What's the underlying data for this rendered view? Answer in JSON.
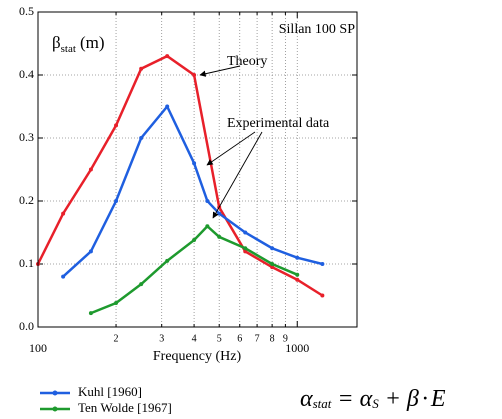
{
  "chart_data": {
    "type": "line",
    "annotations": {
      "ylabel_symbol": "β",
      "ylabel_sub": "stat",
      "ylabel_unit": "(m)",
      "label": "Sillan 100 SP",
      "theory": "Theory",
      "experimental": "Experimental data"
    },
    "xlabel": "Frequency (Hz)",
    "log_x": true,
    "grid": true,
    "xlim": [
      100,
      1700
    ],
    "ylim": [
      0,
      0.5
    ],
    "xticks": [
      100,
      {
        "value": 200,
        "label": "2"
      },
      {
        "value": 300,
        "label": "3"
      },
      {
        "value": 400,
        "label": "4"
      },
      {
        "value": 500,
        "label": "5"
      },
      {
        "value": 600,
        "label": "6"
      },
      {
        "value": 700,
        "label": "7"
      },
      {
        "value": 800,
        "label": "8"
      },
      {
        "value": 900,
        "label": "9"
      },
      1000
    ],
    "yticks": [
      {
        "value": 0,
        "label": "0.0"
      },
      0.1,
      0.2,
      0.3,
      0.4,
      0.5
    ],
    "series": [
      {
        "color": "#e8202a",
        "x": [
          100,
          125,
          160,
          200,
          250,
          315,
          400,
          500,
          630,
          800,
          1000,
          1250
        ],
        "values": [
          0.1,
          0.18,
          0.25,
          0.32,
          0.41,
          0.43,
          0.4,
          0.19,
          0.12,
          0.095,
          0.075,
          0.05
        ]
      },
      {
        "name": "Kuhl [1960]",
        "color": "#1f5fe0",
        "x": [
          125,
          160,
          200,
          250,
          315,
          400,
          450,
          500,
          630,
          800,
          1000,
          1250
        ],
        "values": [
          0.08,
          0.12,
          0.2,
          0.3,
          0.35,
          0.26,
          0.2,
          0.18,
          0.15,
          0.125,
          0.11,
          0.1
        ]
      },
      {
        "name": "Ten Wolde [1967]",
        "color": "#1e9a2e",
        "x": [
          160,
          200,
          250,
          315,
          400,
          450,
          500,
          630,
          800,
          1000
        ],
        "values": [
          0.022,
          0.038,
          0.068,
          0.105,
          0.138,
          0.16,
          0.143,
          0.125,
          0.1,
          0.083
        ]
      }
    ],
    "formula": {
      "alpha": "α",
      "stat": "stat",
      "eq": "=",
      "alpha2": "α",
      "s": "S",
      "plus": "+",
      "beta": "β",
      "dot": "·",
      "e": "E"
    }
  }
}
